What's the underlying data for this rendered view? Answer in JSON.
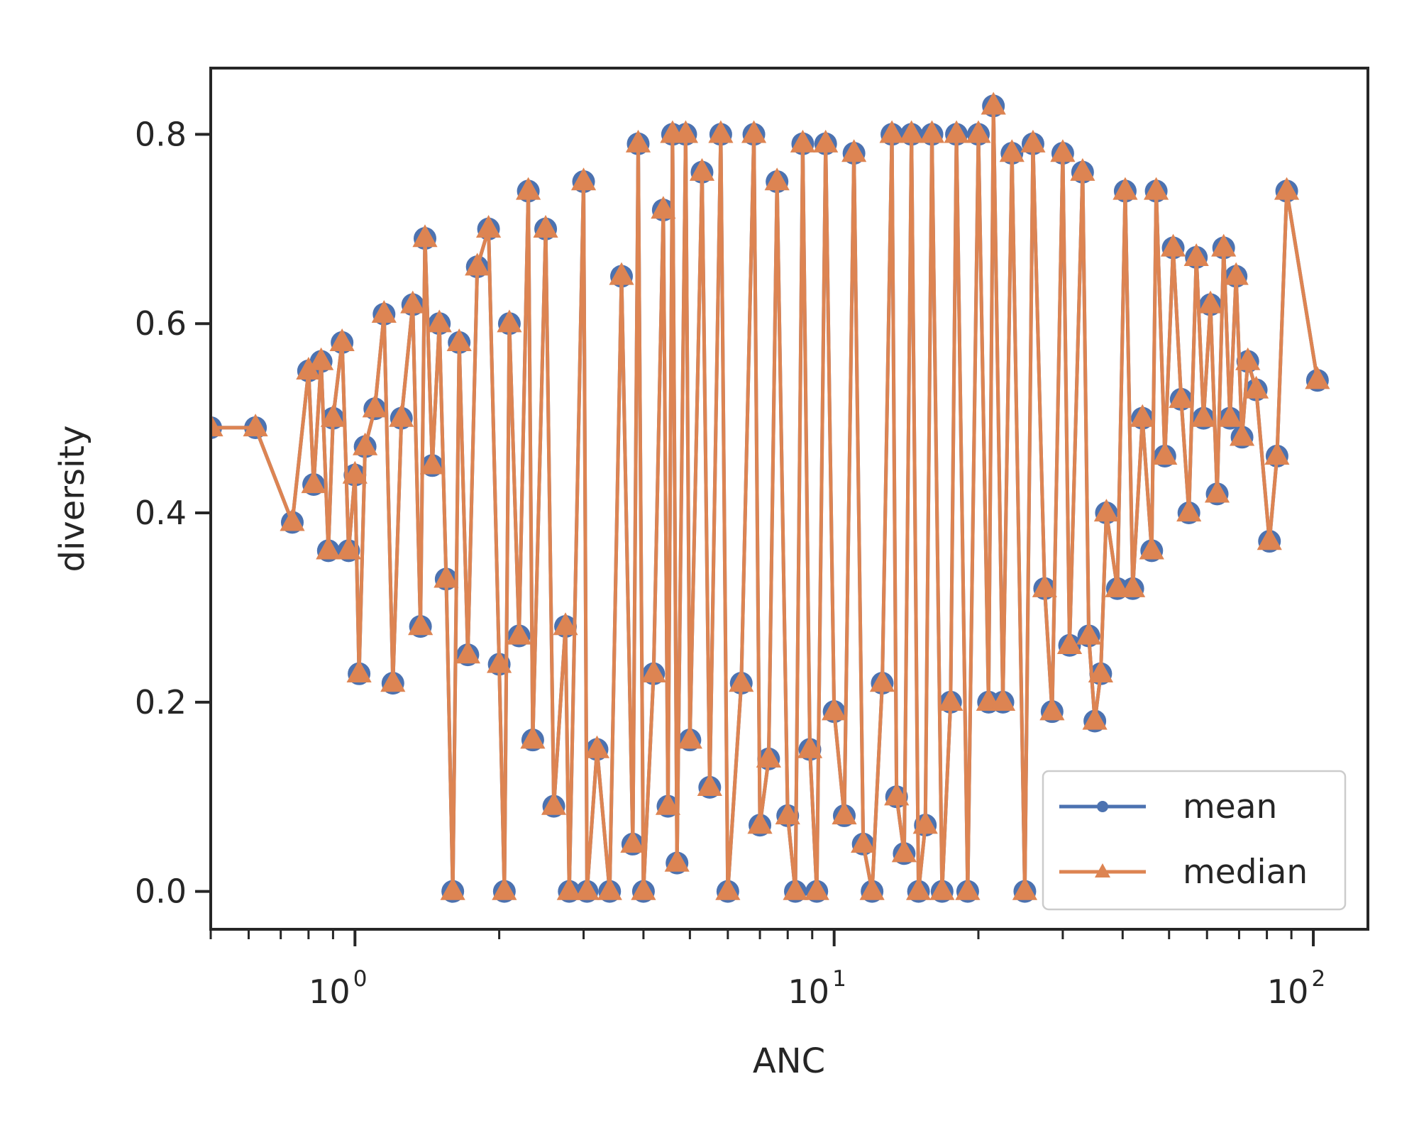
{
  "chart_data": {
    "type": "line",
    "xlabel": "ANC",
    "ylabel": "diversity",
    "xscale": "log",
    "xlim": [
      0.5,
      130
    ],
    "ylim": [
      -0.04,
      0.87
    ],
    "yticks": [
      {
        "value": 0.0,
        "label": "0.0"
      },
      {
        "value": 0.2,
        "label": "0.2"
      },
      {
        "value": 0.4,
        "label": "0.4"
      },
      {
        "value": 0.6,
        "label": "0.6"
      },
      {
        "value": 0.8,
        "label": "0.8"
      }
    ],
    "xticks_major": [
      {
        "value": 1,
        "base": "10",
        "exp": "0"
      },
      {
        "value": 10,
        "base": "10",
        "exp": "1"
      },
      {
        "value": 100,
        "base": "10",
        "exp": "2"
      }
    ],
    "xticks_minor": [
      0.5,
      0.6,
      0.7,
      0.8,
      0.9,
      2,
      3,
      4,
      5,
      6,
      7,
      8,
      9,
      20,
      30,
      40,
      50,
      60,
      70,
      80,
      90
    ],
    "grid": false,
    "legend_position": "lower right",
    "colors": {
      "mean": "#4c72b0",
      "median": "#dd8452",
      "axis": "#262626"
    },
    "series": [
      {
        "name": "mean",
        "label": "mean",
        "marker": "circle",
        "points": [
          [
            0.5,
            0.49
          ],
          [
            0.62,
            0.49
          ],
          [
            0.74,
            0.39
          ],
          [
            0.8,
            0.55
          ],
          [
            0.82,
            0.43
          ],
          [
            0.85,
            0.56
          ],
          [
            0.88,
            0.36
          ],
          [
            0.9,
            0.5
          ],
          [
            0.94,
            0.58
          ],
          [
            0.97,
            0.36
          ],
          [
            1.0,
            0.44
          ],
          [
            1.02,
            0.23
          ],
          [
            1.05,
            0.47
          ],
          [
            1.1,
            0.51
          ],
          [
            1.15,
            0.61
          ],
          [
            1.2,
            0.22
          ],
          [
            1.25,
            0.5
          ],
          [
            1.32,
            0.62
          ],
          [
            1.37,
            0.28
          ],
          [
            1.4,
            0.69
          ],
          [
            1.45,
            0.45
          ],
          [
            1.5,
            0.6
          ],
          [
            1.55,
            0.33
          ],
          [
            1.6,
            0.0
          ],
          [
            1.65,
            0.58
          ],
          [
            1.72,
            0.25
          ],
          [
            1.8,
            0.66
          ],
          [
            1.9,
            0.7
          ],
          [
            2.0,
            0.24
          ],
          [
            2.05,
            0.0
          ],
          [
            2.1,
            0.6
          ],
          [
            2.2,
            0.27
          ],
          [
            2.3,
            0.74
          ],
          [
            2.35,
            0.16
          ],
          [
            2.5,
            0.7
          ],
          [
            2.6,
            0.09
          ],
          [
            2.75,
            0.28
          ],
          [
            2.8,
            0.0
          ],
          [
            3.0,
            0.75
          ],
          [
            3.05,
            0.0
          ],
          [
            3.2,
            0.15
          ],
          [
            3.4,
            0.0
          ],
          [
            3.6,
            0.65
          ],
          [
            3.8,
            0.05
          ],
          [
            3.9,
            0.79
          ],
          [
            4.0,
            0.0
          ],
          [
            4.2,
            0.23
          ],
          [
            4.4,
            0.72
          ],
          [
            4.5,
            0.09
          ],
          [
            4.6,
            0.8
          ],
          [
            4.7,
            0.03
          ],
          [
            4.9,
            0.8
          ],
          [
            5.0,
            0.16
          ],
          [
            5.3,
            0.76
          ],
          [
            5.5,
            0.11
          ],
          [
            5.8,
            0.8
          ],
          [
            6.0,
            0.0
          ],
          [
            6.4,
            0.22
          ],
          [
            6.8,
            0.8
          ],
          [
            7.0,
            0.07
          ],
          [
            7.3,
            0.14
          ],
          [
            7.6,
            0.75
          ],
          [
            8.0,
            0.08
          ],
          [
            8.3,
            0.0
          ],
          [
            8.6,
            0.79
          ],
          [
            8.9,
            0.15
          ],
          [
            9.2,
            0.0
          ],
          [
            9.6,
            0.79
          ],
          [
            10.0,
            0.19
          ],
          [
            10.5,
            0.08
          ],
          [
            11.0,
            0.78
          ],
          [
            11.5,
            0.05
          ],
          [
            12.0,
            0.0
          ],
          [
            12.6,
            0.22
          ],
          [
            13.2,
            0.8
          ],
          [
            13.5,
            0.1
          ],
          [
            14.0,
            0.04
          ],
          [
            14.5,
            0.8
          ],
          [
            15.0,
            0.0
          ],
          [
            15.5,
            0.07
          ],
          [
            16.0,
            0.8
          ],
          [
            16.8,
            0.0
          ],
          [
            17.5,
            0.2
          ],
          [
            18.0,
            0.8
          ],
          [
            19.0,
            0.0
          ],
          [
            20.0,
            0.8
          ],
          [
            21.0,
            0.2
          ],
          [
            21.5,
            0.83
          ],
          [
            22.5,
            0.2
          ],
          [
            23.5,
            0.78
          ],
          [
            25.0,
            0.0
          ],
          [
            26.0,
            0.79
          ],
          [
            27.5,
            0.32
          ],
          [
            28.5,
            0.19
          ],
          [
            30.0,
            0.78
          ],
          [
            31.0,
            0.26
          ],
          [
            33.0,
            0.76
          ],
          [
            34.0,
            0.27
          ],
          [
            35.0,
            0.18
          ],
          [
            36.0,
            0.23
          ],
          [
            37.0,
            0.4
          ],
          [
            39.0,
            0.32
          ],
          [
            40.5,
            0.74
          ],
          [
            42.0,
            0.32
          ],
          [
            44.0,
            0.5
          ],
          [
            46.0,
            0.36
          ],
          [
            47.0,
            0.74
          ],
          [
            49.0,
            0.46
          ],
          [
            51.0,
            0.68
          ],
          [
            53.0,
            0.52
          ],
          [
            55.0,
            0.4
          ],
          [
            57.0,
            0.67
          ],
          [
            59.0,
            0.5
          ],
          [
            61.0,
            0.62
          ],
          [
            63.0,
            0.42
          ],
          [
            65.0,
            0.68
          ],
          [
            67.0,
            0.5
          ],
          [
            69.0,
            0.65
          ],
          [
            71.0,
            0.48
          ],
          [
            73.0,
            0.56
          ],
          [
            76.0,
            0.53
          ],
          [
            81.0,
            0.37
          ],
          [
            84.0,
            0.46
          ],
          [
            88.0,
            0.74
          ],
          [
            102.0,
            0.54
          ]
        ]
      },
      {
        "name": "median",
        "label": "median",
        "marker": "triangle",
        "points": [
          [
            0.5,
            0.49
          ],
          [
            0.62,
            0.49
          ],
          [
            0.74,
            0.39
          ],
          [
            0.8,
            0.55
          ],
          [
            0.82,
            0.43
          ],
          [
            0.85,
            0.56
          ],
          [
            0.88,
            0.36
          ],
          [
            0.9,
            0.5
          ],
          [
            0.94,
            0.58
          ],
          [
            0.97,
            0.36
          ],
          [
            1.0,
            0.44
          ],
          [
            1.02,
            0.23
          ],
          [
            1.05,
            0.47
          ],
          [
            1.1,
            0.51
          ],
          [
            1.15,
            0.61
          ],
          [
            1.2,
            0.22
          ],
          [
            1.25,
            0.5
          ],
          [
            1.32,
            0.62
          ],
          [
            1.37,
            0.28
          ],
          [
            1.4,
            0.69
          ],
          [
            1.45,
            0.45
          ],
          [
            1.5,
            0.6
          ],
          [
            1.55,
            0.33
          ],
          [
            1.6,
            0.0
          ],
          [
            1.65,
            0.58
          ],
          [
            1.72,
            0.25
          ],
          [
            1.8,
            0.66
          ],
          [
            1.9,
            0.7
          ],
          [
            2.0,
            0.24
          ],
          [
            2.05,
            0.0
          ],
          [
            2.1,
            0.6
          ],
          [
            2.2,
            0.27
          ],
          [
            2.3,
            0.74
          ],
          [
            2.35,
            0.16
          ],
          [
            2.5,
            0.7
          ],
          [
            2.6,
            0.09
          ],
          [
            2.75,
            0.28
          ],
          [
            2.8,
            0.0
          ],
          [
            3.0,
            0.75
          ],
          [
            3.05,
            0.0
          ],
          [
            3.2,
            0.15
          ],
          [
            3.4,
            0.0
          ],
          [
            3.6,
            0.65
          ],
          [
            3.8,
            0.05
          ],
          [
            3.9,
            0.79
          ],
          [
            4.0,
            0.0
          ],
          [
            4.2,
            0.23
          ],
          [
            4.4,
            0.72
          ],
          [
            4.5,
            0.09
          ],
          [
            4.6,
            0.8
          ],
          [
            4.7,
            0.03
          ],
          [
            4.9,
            0.8
          ],
          [
            5.0,
            0.16
          ],
          [
            5.3,
            0.76
          ],
          [
            5.5,
            0.11
          ],
          [
            5.8,
            0.8
          ],
          [
            6.0,
            0.0
          ],
          [
            6.4,
            0.22
          ],
          [
            6.8,
            0.8
          ],
          [
            7.0,
            0.07
          ],
          [
            7.3,
            0.14
          ],
          [
            7.6,
            0.75
          ],
          [
            8.0,
            0.08
          ],
          [
            8.3,
            0.0
          ],
          [
            8.6,
            0.79
          ],
          [
            8.9,
            0.15
          ],
          [
            9.2,
            0.0
          ],
          [
            9.6,
            0.79
          ],
          [
            10.0,
            0.19
          ],
          [
            10.5,
            0.08
          ],
          [
            11.0,
            0.78
          ],
          [
            11.5,
            0.05
          ],
          [
            12.0,
            0.0
          ],
          [
            12.6,
            0.22
          ],
          [
            13.2,
            0.8
          ],
          [
            13.5,
            0.1
          ],
          [
            14.0,
            0.04
          ],
          [
            14.5,
            0.8
          ],
          [
            15.0,
            0.0
          ],
          [
            15.5,
            0.07
          ],
          [
            16.0,
            0.8
          ],
          [
            16.8,
            0.0
          ],
          [
            17.5,
            0.2
          ],
          [
            18.0,
            0.8
          ],
          [
            19.0,
            0.0
          ],
          [
            20.0,
            0.8
          ],
          [
            21.0,
            0.2
          ],
          [
            21.5,
            0.83
          ],
          [
            22.5,
            0.2
          ],
          [
            23.5,
            0.78
          ],
          [
            25.0,
            0.0
          ],
          [
            26.0,
            0.79
          ],
          [
            27.5,
            0.32
          ],
          [
            28.5,
            0.19
          ],
          [
            30.0,
            0.78
          ],
          [
            31.0,
            0.26
          ],
          [
            33.0,
            0.76
          ],
          [
            34.0,
            0.27
          ],
          [
            35.0,
            0.18
          ],
          [
            36.0,
            0.23
          ],
          [
            37.0,
            0.4
          ],
          [
            39.0,
            0.32
          ],
          [
            40.5,
            0.74
          ],
          [
            42.0,
            0.32
          ],
          [
            44.0,
            0.5
          ],
          [
            46.0,
            0.36
          ],
          [
            47.0,
            0.74
          ],
          [
            49.0,
            0.46
          ],
          [
            51.0,
            0.68
          ],
          [
            53.0,
            0.52
          ],
          [
            55.0,
            0.4
          ],
          [
            57.0,
            0.67
          ],
          [
            59.0,
            0.5
          ],
          [
            61.0,
            0.62
          ],
          [
            63.0,
            0.42
          ],
          [
            65.0,
            0.68
          ],
          [
            67.0,
            0.5
          ],
          [
            69.0,
            0.65
          ],
          [
            71.0,
            0.48
          ],
          [
            73.0,
            0.56
          ],
          [
            76.0,
            0.53
          ],
          [
            81.0,
            0.37
          ],
          [
            84.0,
            0.46
          ],
          [
            88.0,
            0.74
          ],
          [
            102.0,
            0.54
          ]
        ]
      }
    ]
  }
}
